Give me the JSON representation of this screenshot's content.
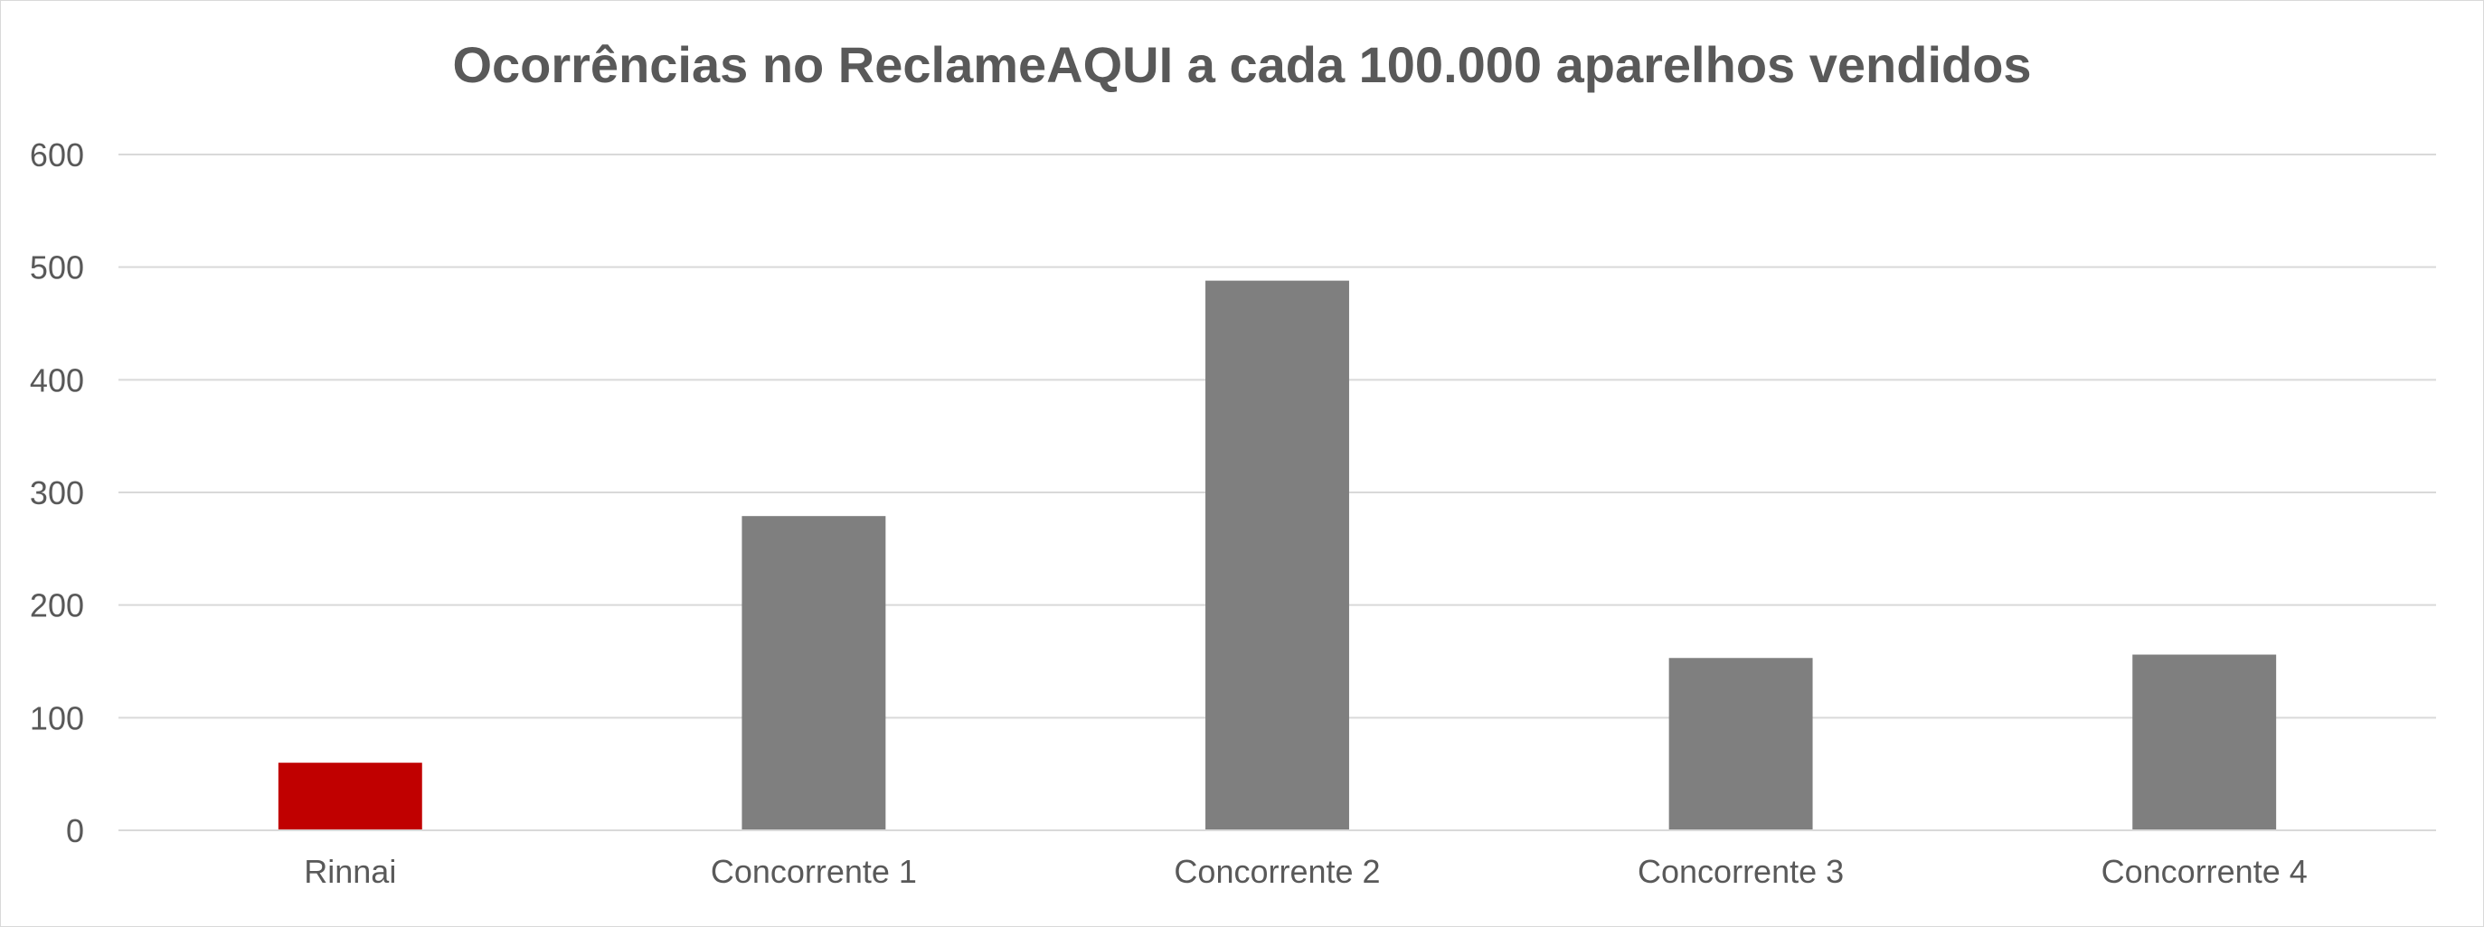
{
  "chart_data": {
    "type": "bar",
    "title": "Ocorrências no ReclameAQUI a cada 100.000 aparelhos vendidos",
    "xlabel": "",
    "ylabel": "",
    "categories": [
      "Rinnai",
      "Concorrente 1",
      "Concorrente 2",
      "Concorrente 3",
      "Concorrente 4"
    ],
    "values": [
      60,
      279,
      488,
      153,
      156
    ],
    "colors": [
      "#c00000",
      "#7f7f7f",
      "#7f7f7f",
      "#7f7f7f",
      "#7f7f7f"
    ],
    "ylim": [
      0,
      600
    ],
    "yticks": [
      "0",
      "100",
      "200",
      "300",
      "400",
      "500",
      "600"
    ],
    "grid": true,
    "legend": "none"
  }
}
